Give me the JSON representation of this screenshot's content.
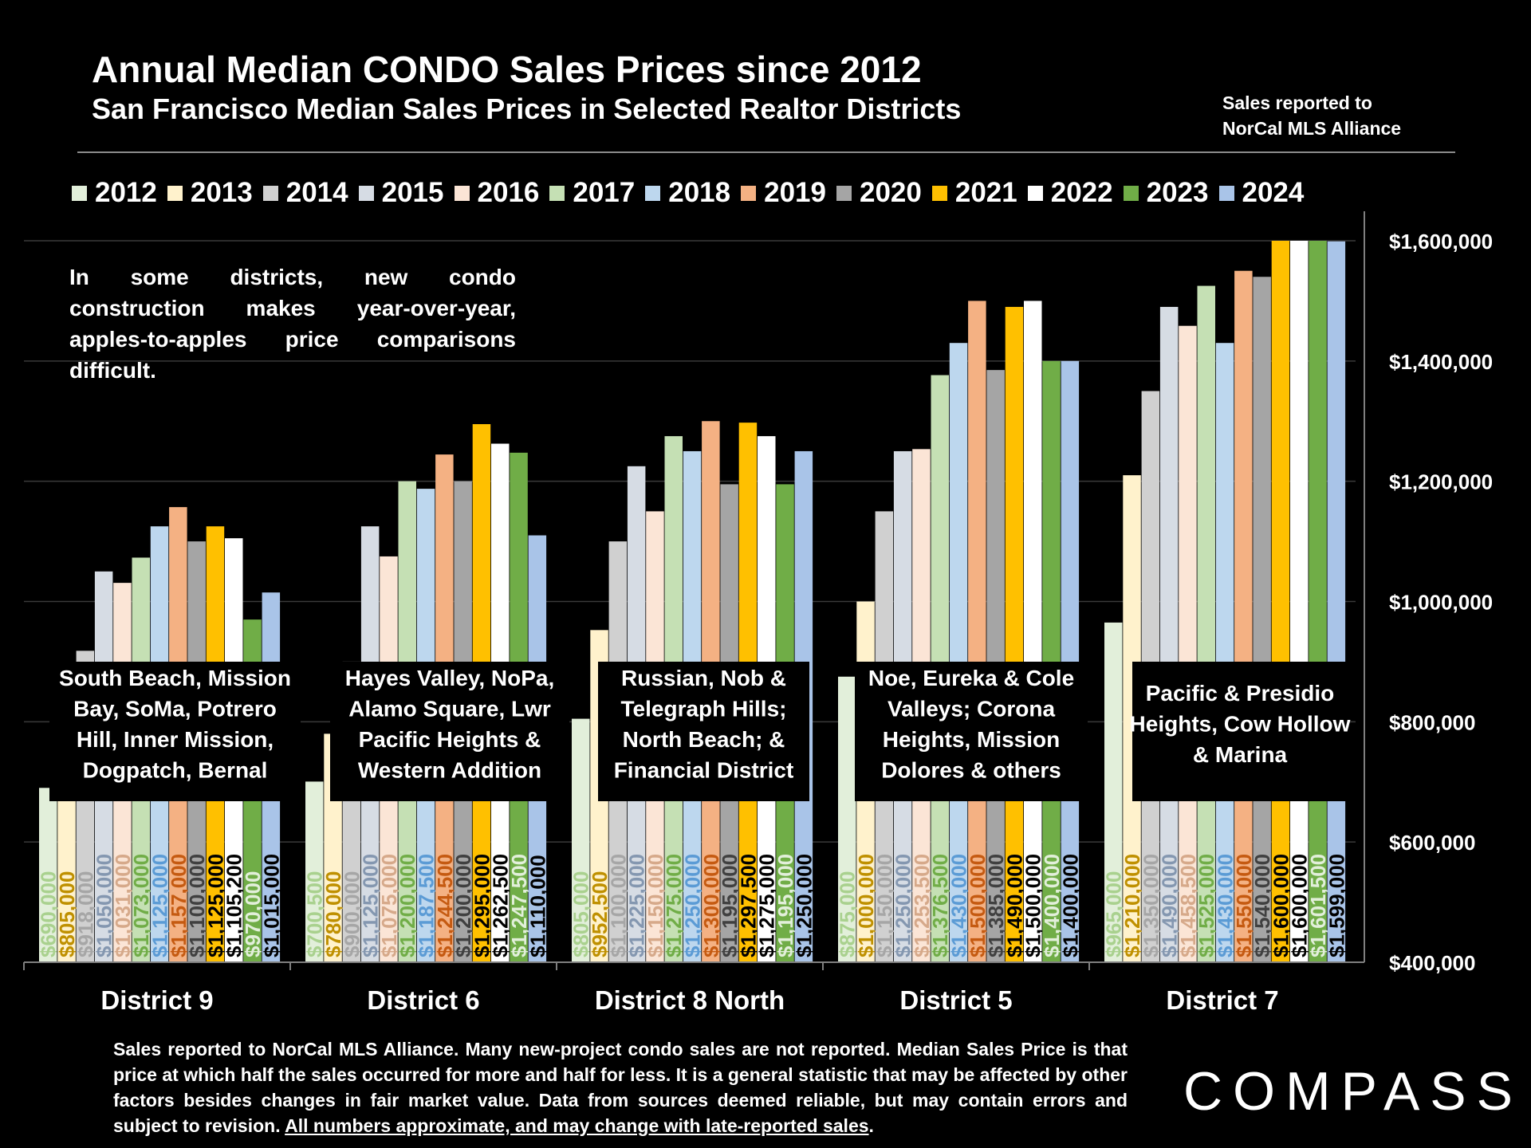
{
  "header": {
    "title": "Annual Median CONDO Sales Prices since 2012",
    "subtitle": "San Francisco Median Sales Prices in Selected Realtor Districts",
    "source_note": "Sales reported to NorCal MLS Alliance"
  },
  "annotation": "In some districts, new condo construction makes year-over-year, apples-to-apples price comparisons difficult.",
  "footer": {
    "disclaimer": "Sales reported to NorCal MLS Alliance. Many new-project condo sales are not reported. Median Sales Price is that price at which half the sales occurred for more and half for less. It is a general statistic that may be affected by other factors besides changes in fair market value. Data from sources deemed reliable, but may contain errors and subject to revision.",
    "underlined": "All numbers approximate, and may change with late-reported sales",
    "logo": "COMPASS"
  },
  "chart_data": {
    "type": "bar",
    "ylim": [
      400000,
      1600000
    ],
    "y_ticks": [
      "$400,000",
      "$600,000",
      "$800,000",
      "$1,000,000",
      "$1,200,000",
      "$1,400,000",
      "$1,600,000"
    ],
    "y_tick_values": [
      400000,
      600000,
      800000,
      1000000,
      1200000,
      1400000,
      1600000
    ],
    "grid": true,
    "legend_position": "top",
    "categories": [
      "District 9",
      "District 6",
      "District 8 North",
      "District 5",
      "District 7"
    ],
    "category_descriptions": [
      "South Beach, Mission Bay, SoMa, Potrero Hill, Inner Mission, Dogpatch, Bernal",
      "Hayes Valley, NoPa, Alamo Square, Lwr Pacific Heights & Western Addition",
      "Russian, Nob & Telegraph Hills; North Beach; & Financial District",
      "Noe, Eureka & Cole Valleys; Corona Heights, Mission Dolores & others",
      "Pacific & Presidio Heights, Cow Hollow & Marina"
    ],
    "series": [
      {
        "name": "2012",
        "color": "#e2efda",
        "label_color": "#a9d18e",
        "values": [
          690000,
          700500,
          805000,
          875000,
          965000
        ],
        "labels": [
          "$690,000",
          "$700,500",
          "$805,000",
          "$875,000",
          "$965,000"
        ]
      },
      {
        "name": "2013",
        "color": "#fff2cc",
        "label_color": "#bf9000",
        "values": [
          805000,
          780000,
          952500,
          1000000,
          1210000
        ],
        "labels": [
          "$805,000",
          "$780,000",
          "$952,500",
          "$1,000,000",
          "$1,210,000"
        ]
      },
      {
        "name": "2014",
        "color": "#d0d0d0",
        "label_color": "#a6a6a6",
        "values": [
          918000,
          900000,
          1100000,
          1150000,
          1350000
        ],
        "labels": [
          "$918,000",
          "$900,000",
          "$1,100,000",
          "$1,150,000",
          "$1,350,000"
        ]
      },
      {
        "name": "2015",
        "color": "#d6dce4",
        "label_color": "#8497b0",
        "values": [
          1050000,
          1125000,
          1225000,
          1250000,
          1490000
        ],
        "labels": [
          "$1,050,000",
          "$1,125,000",
          "$1,225,000",
          "$1,250,000",
          "$1,490,000"
        ]
      },
      {
        "name": "2016",
        "color": "#fbe5d6",
        "label_color": "#d6a98a",
        "values": [
          1031000,
          1075000,
          1150000,
          1253500,
          1458500
        ],
        "labels": [
          "$1,031,000",
          "$1,075,000",
          "$1,150,000",
          "$1,253,500",
          "$1,458,500"
        ]
      },
      {
        "name": "2017",
        "color": "#c5e0b4",
        "label_color": "#70ad47",
        "values": [
          1073000,
          1200000,
          1275000,
          1376500,
          1525000
        ],
        "labels": [
          "$1,073,000",
          "$1,200,000",
          "$1,275,000",
          "$1,376,500",
          "$1,525,000"
        ]
      },
      {
        "name": "2018",
        "color": "#bdd7ee",
        "label_color": "#5b9bd5",
        "values": [
          1125000,
          1187500,
          1250000,
          1430000,
          1430000
        ],
        "labels": [
          "$1,125,000",
          "$1,187,500",
          "$1,250,000",
          "$1,430,000",
          "$1,430,000"
        ]
      },
      {
        "name": "2019",
        "color": "#f4b183",
        "label_color": "#c55a11",
        "values": [
          1157000,
          1244500,
          1300000,
          1500000,
          1550000
        ],
        "labels": [
          "$1,157,000",
          "$1,244,500",
          "$1,300,000",
          "$1,500,000",
          "$1,550,000"
        ]
      },
      {
        "name": "2020",
        "color": "#a5a5a5",
        "label_color": "#404040",
        "values": [
          1100000,
          1200000,
          1195000,
          1385000,
          1540000
        ],
        "labels": [
          "$1,100,000",
          "$1,200,000",
          "$1,195,000",
          "$1,385,000",
          "$1,540,000"
        ]
      },
      {
        "name": "2021",
        "color": "#ffc000",
        "label_color": "#000000",
        "values": [
          1125000,
          1295000,
          1297500,
          1490000,
          1600000
        ],
        "labels": [
          "$1,125,000",
          "$1,295,000",
          "$1,297,500",
          "$1,490,000",
          "$1,600,000"
        ]
      },
      {
        "name": "2022",
        "color": "#ffffff",
        "label_color": "#000000",
        "values": [
          1105200,
          1262500,
          1275000,
          1500000,
          1600000
        ],
        "labels": [
          "$1,105,200",
          "$1,262,500",
          "$1,275,000",
          "$1,500,000",
          "$1,600,000"
        ]
      },
      {
        "name": "2023",
        "color": "#70ad47",
        "label_color": "#e2efda",
        "values": [
          970000,
          1247500,
          1195000,
          1400000,
          1601500
        ],
        "labels": [
          "$970,000",
          "$1,247,500",
          "$1,195,000",
          "$1,400,000",
          "$1,601,500"
        ]
      },
      {
        "name": "2024",
        "color": "#a9c4e8",
        "label_color": "#000000",
        "values": [
          1015000,
          1110000,
          1250000,
          1400000,
          1599000
        ],
        "labels": [
          "$1,015,000",
          "$1,110,000",
          "$1,250,000",
          "$1,400,000",
          "$1,599,000"
        ]
      }
    ]
  }
}
